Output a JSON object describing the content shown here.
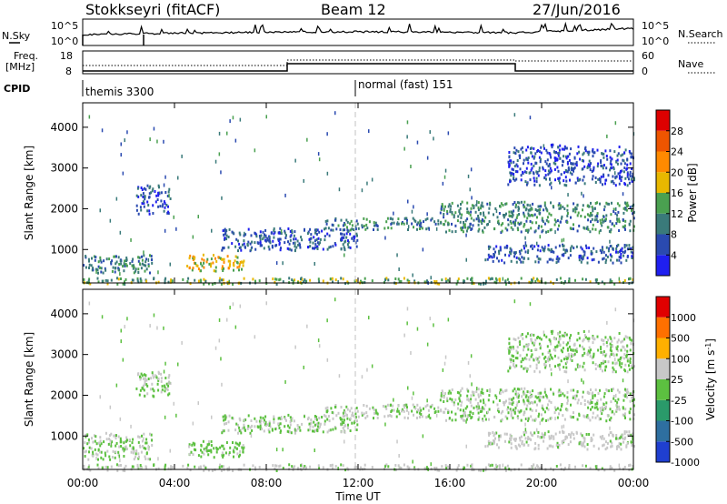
{
  "header": {
    "station": "Stokkseyri (fitACF)",
    "beam": "Beam 12",
    "date": "27/Jun/2016"
  },
  "noise_panel": {
    "left_label": "N.Sky",
    "right_label": "N.Search",
    "left_ticks": [
      "10^5",
      "10^0"
    ],
    "right_ticks": [
      "10^5",
      "10^0"
    ]
  },
  "freq_panel": {
    "left_label_line1": "Freq.",
    "left_label_line2": "[MHz]",
    "right_label": "Nave",
    "left_ticks": [
      "18",
      "8"
    ],
    "right_ticks": [
      "60",
      "0"
    ]
  },
  "cpid": {
    "label": "CPID",
    "modes": [
      {
        "name": "themis 3300",
        "start_hour": 0
      },
      {
        "name": "normal (fast) 151",
        "start_hour": 12
      }
    ]
  },
  "power_panel": {
    "ylabel": "Slant Range [km]",
    "yticks": [
      "4000",
      "3000",
      "2000",
      "1000"
    ],
    "colorbar_label": "Power [dB]",
    "colorbar_ticks": [
      "28",
      "24",
      "20",
      "16",
      "12",
      "8",
      "4"
    ],
    "colors": [
      "#1f1ff0",
      "#2a4ab0",
      "#3a7a7a",
      "#4aa050",
      "#e8b800",
      "#ff8a00",
      "#ee5500",
      "#dd0000"
    ]
  },
  "velocity_panel": {
    "ylabel": "Slant Range [km]",
    "yticks": [
      "4000",
      "3000",
      "2000",
      "1000"
    ],
    "colorbar_label": "Velocity [m s",
    "colorbar_sup": "-1",
    "colorbar_suffix": "]",
    "colorbar_ticks": [
      "1000",
      "500",
      "100",
      "25",
      "-25",
      "-100",
      "-500",
      "-1000"
    ],
    "colors": [
      "#1f3fd0",
      "#2e6fa0",
      "#2a9a6a",
      "#5cc040",
      "#c8c8c8",
      "#ffb000",
      "#ff7000",
      "#e00000"
    ]
  },
  "xaxis": {
    "label": "Time UT",
    "ticks": [
      "00:00",
      "04:00",
      "08:00",
      "12:00",
      "16:00",
      "20:00",
      "00:00"
    ]
  },
  "chart_data": [
    {
      "type": "heatmap",
      "title": "Power",
      "xlabel": "Time UT",
      "ylabel": "Slant Range [km]",
      "xlim": [
        0,
        24
      ],
      "ylim": [
        180,
        4600
      ],
      "zlim": [
        0,
        32
      ],
      "patches": [
        {
          "t0": 0.0,
          "t1": 24.0,
          "r0": 180,
          "r1": 330,
          "v": 14
        },
        {
          "t0": 0.0,
          "t1": 3.0,
          "r0": 450,
          "r1": 900,
          "v": 10
        },
        {
          "t0": 2.3,
          "t1": 3.8,
          "r0": 1900,
          "r1": 2600,
          "v": 6
        },
        {
          "t0": 4.5,
          "t1": 7.0,
          "r0": 500,
          "r1": 900,
          "v": 18
        },
        {
          "t0": 6.0,
          "t1": 12.0,
          "r0": 1000,
          "r1": 1550,
          "v": 7
        },
        {
          "t0": 10.5,
          "t1": 15.5,
          "r0": 1500,
          "r1": 1800,
          "v": 9
        },
        {
          "t0": 15.5,
          "t1": 24.0,
          "r0": 1450,
          "r1": 2200,
          "v": 11
        },
        {
          "t0": 17.5,
          "t1": 24.0,
          "r0": 700,
          "r1": 1150,
          "v": 7
        },
        {
          "t0": 18.5,
          "t1": 24.0,
          "r0": 2600,
          "r1": 3600,
          "v": 6
        }
      ]
    },
    {
      "type": "heatmap",
      "title": "Velocity",
      "xlabel": "Time UT",
      "ylabel": "Slant Range [km]",
      "xlim": [
        0,
        24
      ],
      "ylim": [
        180,
        4600
      ],
      "zlim": [
        -1000,
        1000
      ],
      "patches": [
        {
          "t0": 0.0,
          "t1": 24.0,
          "r0": 180,
          "r1": 330,
          "v": 60
        },
        {
          "t0": 0.0,
          "t1": 3.0,
          "r0": 450,
          "r1": 1100,
          "v": 0
        },
        {
          "t0": 2.3,
          "t1": 3.8,
          "r0": 2000,
          "r1": 2600,
          "v": 0
        },
        {
          "t0": 4.5,
          "t1": 7.0,
          "r0": 500,
          "r1": 900,
          "v": -60
        },
        {
          "t0": 6.0,
          "t1": 12.0,
          "r0": 1100,
          "r1": 1550,
          "v": 0
        },
        {
          "t0": 10.5,
          "t1": 15.5,
          "r0": 1450,
          "r1": 1800,
          "v": 0
        },
        {
          "t0": 15.5,
          "t1": 24.0,
          "r0": 1400,
          "r1": 2200,
          "v": 0
        },
        {
          "t0": 17.5,
          "t1": 24.0,
          "r0": 700,
          "r1": 1150,
          "v": 60
        },
        {
          "t0": 18.5,
          "t1": 24.0,
          "r0": 2600,
          "r1": 3600,
          "v": 0
        }
      ]
    }
  ]
}
